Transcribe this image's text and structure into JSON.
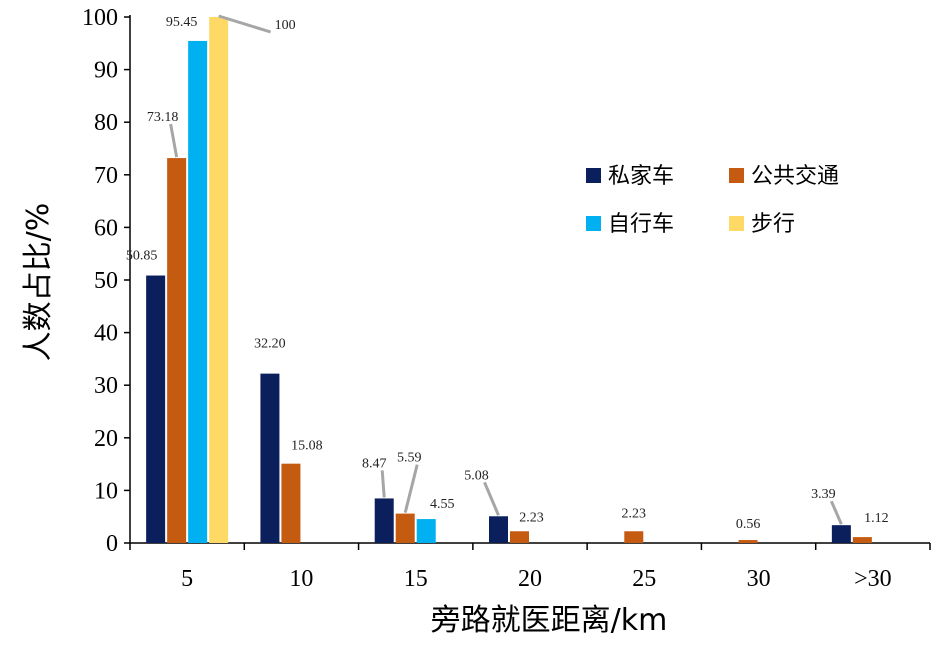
{
  "chart_data": {
    "type": "bar",
    "title": "",
    "xlabel": "旁路就医距离/km",
    "ylabel": "人数占比/%",
    "ylim": [
      0,
      100
    ],
    "yticks": [
      0,
      10,
      20,
      30,
      40,
      50,
      60,
      70,
      80,
      90,
      100
    ],
    "categories": [
      "5",
      "10",
      "15",
      "20",
      "25",
      "30",
      ">30"
    ],
    "series": [
      {
        "name": "私家车",
        "color": "#0b1f5c",
        "values": [
          50.85,
          32.2,
          8.47,
          5.08,
          null,
          null,
          3.39
        ],
        "labels": [
          "50.85",
          "32.20",
          "8.47",
          "5.08",
          null,
          null,
          "3.39"
        ]
      },
      {
        "name": "公共交通",
        "color": "#c55a11",
        "values": [
          73.18,
          15.08,
          5.59,
          2.23,
          2.23,
          0.56,
          1.12
        ],
        "labels": [
          "73.18",
          "15.08",
          "5.59",
          "2.23",
          "2.23",
          "0.56",
          "1.12"
        ]
      },
      {
        "name": "自行车",
        "color": "#00b0f0",
        "values": [
          95.45,
          null,
          4.55,
          null,
          null,
          null,
          null
        ],
        "labels": [
          "95.45",
          null,
          "4.55",
          null,
          null,
          null,
          null
        ]
      },
      {
        "name": "步行",
        "color": "#ffd966",
        "values": [
          100,
          null,
          null,
          null,
          null,
          null,
          null
        ],
        "labels": [
          "100",
          null,
          null,
          null,
          null,
          null,
          null
        ]
      }
    ],
    "legend": "inside-right",
    "grid": false
  }
}
